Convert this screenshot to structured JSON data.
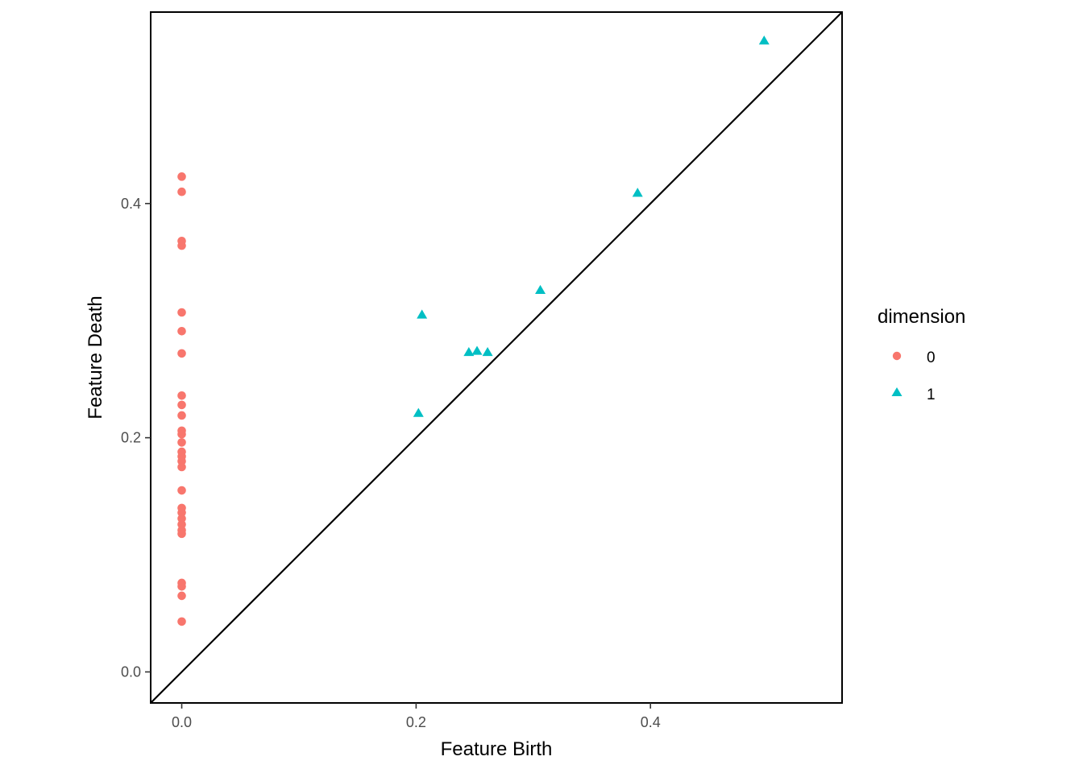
{
  "chart_data": {
    "type": "scatter",
    "title": "",
    "xlabel": "Feature Birth",
    "ylabel": "Feature Death",
    "xlim": [
      -0.0265,
      0.5635
    ],
    "ylim": [
      -0.0265,
      0.5635
    ],
    "x_ticks": [
      0.0,
      0.2,
      0.4
    ],
    "x_tick_labels": [
      "0.0",
      "0.2",
      "0.4"
    ],
    "y_ticks": [
      0.0,
      0.2,
      0.4
    ],
    "y_tick_labels": [
      "0.0",
      "0.2",
      "0.4"
    ],
    "diagonal": true,
    "grid": false,
    "legend": {
      "title": "dimension",
      "placement": "right",
      "entries": [
        {
          "label": "0",
          "shape": "circle",
          "color": "#F8766D"
        },
        {
          "label": "1",
          "shape": "triangle",
          "color": "#00BFC4"
        }
      ]
    },
    "series": [
      {
        "name": "0",
        "shape": "circle",
        "color": "#F8766D",
        "points": [
          [
            0,
            0.423
          ],
          [
            0,
            0.41
          ],
          [
            0,
            0.368
          ],
          [
            0,
            0.364
          ],
          [
            0,
            0.307
          ],
          [
            0,
            0.291
          ],
          [
            0,
            0.272
          ],
          [
            0,
            0.236
          ],
          [
            0,
            0.228
          ],
          [
            0,
            0.219
          ],
          [
            0,
            0.206
          ],
          [
            0,
            0.203
          ],
          [
            0,
            0.196
          ],
          [
            0,
            0.188
          ],
          [
            0,
            0.184
          ],
          [
            0,
            0.18
          ],
          [
            0,
            0.175
          ],
          [
            0,
            0.155
          ],
          [
            0,
            0.14
          ],
          [
            0,
            0.136
          ],
          [
            0,
            0.131
          ],
          [
            0,
            0.126
          ],
          [
            0,
            0.121
          ],
          [
            0,
            0.118
          ],
          [
            0,
            0.076
          ],
          [
            0,
            0.073
          ],
          [
            0,
            0.065
          ],
          [
            0,
            0.043
          ]
        ]
      },
      {
        "name": "1",
        "shape": "triangle",
        "color": "#00BFC4",
        "points": [
          [
            0.497,
            0.539
          ],
          [
            0.389,
            0.409
          ],
          [
            0.306,
            0.326
          ],
          [
            0.205,
            0.305
          ],
          [
            0.245,
            0.273
          ],
          [
            0.252,
            0.274
          ],
          [
            0.261,
            0.273
          ],
          [
            0.202,
            0.221
          ]
        ]
      }
    ]
  }
}
